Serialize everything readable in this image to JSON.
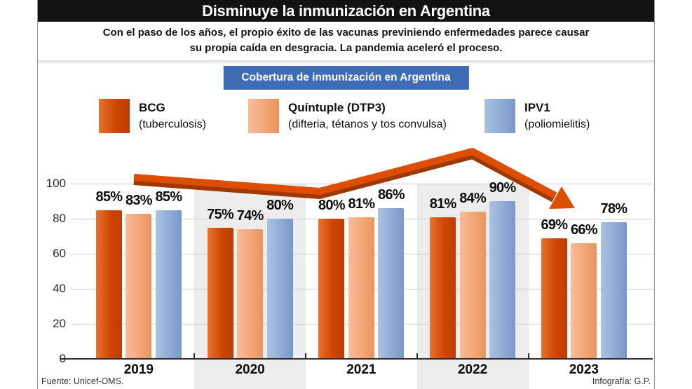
{
  "title": "Disminuye la inmunización en Argentina",
  "subtitle": {
    "line1": "Con el paso de los años, el propio éxito de las vacunas previniendo enfermedades parece causar",
    "line2": "su propia caída en desgracia. La pandemia aceleró el proceso."
  },
  "chart_header": "Cobertura de inmunización en Argentina",
  "legend": [
    {
      "name": "BCG",
      "sub": "(tuberculosis)",
      "color_light": "#e8722e",
      "color": "#cf4604",
      "color_dark": "#bc3d02"
    },
    {
      "name": "Quíntuple (DTP3)",
      "sub": "(difteria, tétanos y tos convulsa)",
      "color_light": "#f8bd98",
      "color": "#f2a678",
      "color_dark": "#e9945f"
    },
    {
      "name": "IPV1",
      "sub": "(poliomielitis)",
      "color_light": "#abc2e2",
      "color": "#8fabd6",
      "color_dark": "#7b97c8"
    }
  ],
  "footer": {
    "source": "Fuente: Unicef-OMS.",
    "credit": "Infografía: G.P."
  },
  "colors": {
    "title_bg": "#121212",
    "header_bg": "#3f6db5",
    "frame_border": "#9a9a9a",
    "strip": "#ededed",
    "grid": "#cccccc",
    "axis": "#2e2e2e",
    "arrow": "#dd4e04",
    "arrow_shadow": "#9c3900"
  },
  "chart_data": {
    "type": "bar",
    "title": "Cobertura de inmunización en Argentina",
    "categories": [
      "2019",
      "2020",
      "2021",
      "2022",
      "2023"
    ],
    "series": [
      {
        "name": "BCG",
        "values": [
          85,
          75,
          80,
          81,
          69
        ]
      },
      {
        "name": "Quíntuple (DTP3)",
        "values": [
          83,
          74,
          81,
          84,
          66
        ]
      },
      {
        "name": "IPV1",
        "values": [
          85,
          80,
          86,
          90,
          78
        ]
      }
    ],
    "unit": "%",
    "xlabel": "",
    "ylabel": "",
    "ylim": [
      0,
      100
    ],
    "yticks": [
      0,
      20,
      40,
      60,
      80,
      100
    ],
    "grid": true,
    "value_labels": true,
    "highlighted_columns": [
      "2020",
      "2022"
    ],
    "legend_position": "top",
    "annotation": "declining trend arrow peaking at 2022 then dropping toward 2023"
  }
}
